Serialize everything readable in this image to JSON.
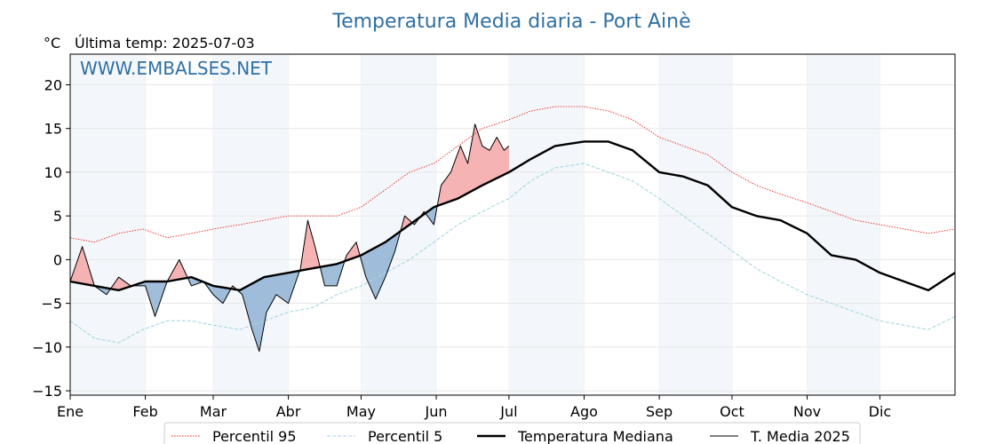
{
  "chart_data": {
    "type": "line",
    "title": "Temperatura Media diaria - Port Ainè",
    "unit_label": "°C",
    "last_temp_label": "Última temp: 2025-07-03",
    "watermark": "WWW.EMBALSES.NET",
    "ylim": [
      -15.5,
      23.5
    ],
    "xlim": [
      0,
      365
    ],
    "y_ticks": [
      20,
      15,
      10,
      5,
      0,
      -5,
      -10,
      -15
    ],
    "y_tick_labels": [
      "20",
      "15",
      "10",
      "5",
      "0",
      "−5",
      "−10",
      "−15"
    ],
    "months": [
      "Ene",
      "Feb",
      "Mar",
      "Abr",
      "May",
      "Jun",
      "Jul",
      "Ago",
      "Sep",
      "Oct",
      "Nov",
      "Dic"
    ],
    "month_start_days": [
      0,
      31,
      59,
      90,
      120,
      151,
      181,
      212,
      243,
      273,
      304,
      334
    ],
    "shaded_months": [
      0,
      2,
      4,
      6,
      8,
      10
    ],
    "legend_position": "bottom-center",
    "grid": true,
    "series": [
      {
        "name": "Percentil 95",
        "style": "dotted",
        "color": "#e8231d",
        "points": [
          [
            0,
            2.5
          ],
          [
            10,
            2
          ],
          [
            20,
            3
          ],
          [
            30,
            3.5
          ],
          [
            40,
            2.5
          ],
          [
            50,
            3
          ],
          [
            59,
            3.5
          ],
          [
            70,
            4
          ],
          [
            80,
            4.5
          ],
          [
            90,
            5
          ],
          [
            100,
            5
          ],
          [
            110,
            5
          ],
          [
            120,
            6
          ],
          [
            130,
            8
          ],
          [
            140,
            10
          ],
          [
            150,
            11
          ],
          [
            160,
            13
          ],
          [
            170,
            15
          ],
          [
            181,
            16
          ],
          [
            190,
            17
          ],
          [
            200,
            17.5
          ],
          [
            212,
            17.5
          ],
          [
            222,
            17
          ],
          [
            232,
            16
          ],
          [
            243,
            14
          ],
          [
            253,
            13
          ],
          [
            263,
            12
          ],
          [
            273,
            10
          ],
          [
            283,
            8.5
          ],
          [
            293,
            7.5
          ],
          [
            304,
            6.5
          ],
          [
            314,
            5.5
          ],
          [
            324,
            4.5
          ],
          [
            334,
            4
          ],
          [
            344,
            3.5
          ],
          [
            354,
            3
          ],
          [
            365,
            3.5
          ]
        ]
      },
      {
        "name": "Percentil 5",
        "style": "dashed",
        "color": "#a8d5e2",
        "points": [
          [
            0,
            -7
          ],
          [
            10,
            -9
          ],
          [
            20,
            -9.5
          ],
          [
            30,
            -8
          ],
          [
            40,
            -7
          ],
          [
            50,
            -7
          ],
          [
            59,
            -7.5
          ],
          [
            70,
            -8
          ],
          [
            80,
            -7
          ],
          [
            90,
            -6
          ],
          [
            100,
            -5.5
          ],
          [
            110,
            -4
          ],
          [
            120,
            -3
          ],
          [
            130,
            -1.5
          ],
          [
            140,
            0
          ],
          [
            150,
            2
          ],
          [
            160,
            4
          ],
          [
            170,
            5.5
          ],
          [
            181,
            7
          ],
          [
            190,
            9
          ],
          [
            200,
            10.5
          ],
          [
            212,
            11
          ],
          [
            222,
            10
          ],
          [
            232,
            9
          ],
          [
            243,
            7
          ],
          [
            253,
            5
          ],
          [
            263,
            3
          ],
          [
            273,
            1
          ],
          [
            283,
            -1
          ],
          [
            293,
            -2.5
          ],
          [
            304,
            -4
          ],
          [
            314,
            -5
          ],
          [
            324,
            -6
          ],
          [
            334,
            -7
          ],
          [
            344,
            -7.5
          ],
          [
            354,
            -8
          ],
          [
            365,
            -6.5
          ]
        ]
      },
      {
        "name": "Temperatura Mediana",
        "style": "solid",
        "color": "#000000",
        "points": [
          [
            0,
            -2.5
          ],
          [
            10,
            -3
          ],
          [
            20,
            -3.5
          ],
          [
            31,
            -2.5
          ],
          [
            40,
            -2.5
          ],
          [
            50,
            -2
          ],
          [
            59,
            -3
          ],
          [
            70,
            -3.5
          ],
          [
            80,
            -2
          ],
          [
            90,
            -1.5
          ],
          [
            100,
            -1
          ],
          [
            110,
            -0.5
          ],
          [
            120,
            0.5
          ],
          [
            130,
            2
          ],
          [
            140,
            4
          ],
          [
            150,
            6
          ],
          [
            160,
            7
          ],
          [
            170,
            8.5
          ],
          [
            181,
            10
          ],
          [
            190,
            11.5
          ],
          [
            200,
            13
          ],
          [
            212,
            13.5
          ],
          [
            222,
            13.5
          ],
          [
            232,
            12.5
          ],
          [
            243,
            10
          ],
          [
            253,
            9.5
          ],
          [
            263,
            8.5
          ],
          [
            273,
            6
          ],
          [
            283,
            5
          ],
          [
            293,
            4.5
          ],
          [
            304,
            3
          ],
          [
            314,
            0.5
          ],
          [
            324,
            0
          ],
          [
            334,
            -1.5
          ],
          [
            344,
            -2.5
          ],
          [
            354,
            -3.5
          ],
          [
            365,
            -1.5
          ]
        ]
      },
      {
        "name": "T. Media 2025",
        "style": "solid-thin",
        "color": "#000000",
        "points": [
          [
            0,
            -2.5
          ],
          [
            5,
            1.5
          ],
          [
            10,
            -3
          ],
          [
            15,
            -4
          ],
          [
            20,
            -2
          ],
          [
            25,
            -3
          ],
          [
            31,
            -3
          ],
          [
            35,
            -6.5
          ],
          [
            40,
            -2.5
          ],
          [
            45,
            0
          ],
          [
            50,
            -3
          ],
          [
            55,
            -2.5
          ],
          [
            59,
            -4
          ],
          [
            63,
            -5
          ],
          [
            67,
            -3
          ],
          [
            71,
            -4
          ],
          [
            75,
            -8
          ],
          [
            78,
            -10.5
          ],
          [
            81,
            -6
          ],
          [
            85,
            -4
          ],
          [
            90,
            -5
          ],
          [
            95,
            -1
          ],
          [
            98,
            4.5
          ],
          [
            101,
            1.5
          ],
          [
            105,
            -3
          ],
          [
            110,
            -3
          ],
          [
            114,
            0.5
          ],
          [
            118,
            2
          ],
          [
            122,
            -2
          ],
          [
            126,
            -4.5
          ],
          [
            130,
            -2
          ],
          [
            134,
            1
          ],
          [
            138,
            5
          ],
          [
            142,
            4
          ],
          [
            146,
            5.5
          ],
          [
            150,
            4
          ],
          [
            153,
            8.5
          ],
          [
            157,
            10
          ],
          [
            161,
            13
          ],
          [
            164,
            11
          ],
          [
            167,
            15.5
          ],
          [
            170,
            13
          ],
          [
            173,
            12.5
          ],
          [
            176,
            14
          ],
          [
            179,
            12.5
          ],
          [
            181,
            13
          ]
        ]
      }
    ],
    "legend": [
      "Percentil 95",
      "Percentil 5",
      "Temperatura Mediana",
      "T. Media 2025"
    ]
  }
}
